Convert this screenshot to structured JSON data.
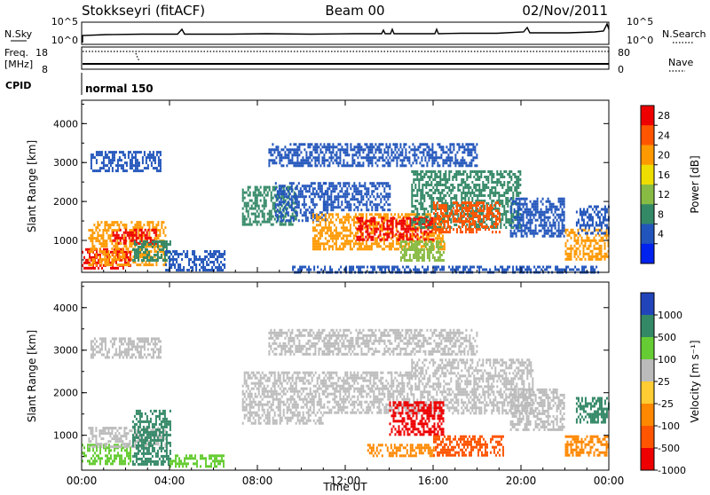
{
  "header": {
    "station": "Stokkseyri (fitACF)",
    "beam": "Beam 00",
    "date": "02/Nov/2011"
  },
  "strips": {
    "nsky": {
      "label": "N.Sky",
      "ticks": [
        "10^5",
        "10^0"
      ]
    },
    "nsearch": {
      "label": "N.Search",
      "ticks": [
        "10^5",
        "10^0"
      ]
    },
    "freq": {
      "label_line1": "Freq.",
      "label_line2": "[MHz]",
      "ticks": [
        "18",
        "8"
      ]
    },
    "nave": {
      "label": "Nave",
      "ticks": [
        "80",
        "0"
      ]
    },
    "cpid": {
      "label": "CPID",
      "value": "normal 150"
    }
  },
  "chart_data": [
    {
      "type": "heatmap",
      "name": "power",
      "ylabel": "Slant Range [km]",
      "y_ticks": [
        "4000",
        "3000",
        "2000",
        "1000"
      ],
      "y_tick_values": [
        4000,
        3000,
        2000,
        1000
      ],
      "ylim": [
        180,
        4600
      ],
      "x_ticks": [
        "00:00",
        "04:00",
        "08:00",
        "12:00",
        "16:00",
        "20:00",
        "00:00"
      ],
      "x_tick_hours": [
        0,
        4,
        8,
        12,
        16,
        20,
        24
      ],
      "xlim_hours": [
        0,
        24
      ],
      "colorbar": {
        "label": "Power [dB]",
        "tick_labels": [
          "28",
          "24",
          "20",
          "16",
          "12",
          "8",
          "4"
        ],
        "colors": [
          "#ee0000",
          "#ff5500",
          "#ff9900",
          "#eedd00",
          "#88bb44",
          "#338866",
          "#2255bb",
          "#0022ee"
        ]
      },
      "regions": [
        {
          "t": [
            0.0,
            2.2
          ],
          "r": [
            300,
            800
          ],
          "color": "#ee0000"
        },
        {
          "t": [
            0.3,
            3.8
          ],
          "r": [
            400,
            1500
          ],
          "color": "#ff9900"
        },
        {
          "t": [
            1.4,
            3.4
          ],
          "r": [
            900,
            1300
          ],
          "color": "#ee0000"
        },
        {
          "t": [
            2.3,
            4.0
          ],
          "r": [
            500,
            1000
          ],
          "color": "#338866"
        },
        {
          "t": [
            3.8,
            6.5
          ],
          "r": [
            250,
            750
          ],
          "color": "#2255bb"
        },
        {
          "t": [
            0.4,
            3.6
          ],
          "r": [
            2800,
            3300
          ],
          "color": "#2255bb"
        },
        {
          "t": [
            7.3,
            9.8
          ],
          "r": [
            1400,
            2400
          ],
          "color": "#338866"
        },
        {
          "t": [
            8.8,
            11.2
          ],
          "r": [
            1500,
            2500
          ],
          "color": "#2255bb"
        },
        {
          "t": [
            10.5,
            16.5
          ],
          "r": [
            800,
            1700
          ],
          "color": "#ff9900"
        },
        {
          "t": [
            12.5,
            16.0
          ],
          "r": [
            1000,
            1600
          ],
          "color": "#ee0000"
        },
        {
          "t": [
            11.0,
            14.0
          ],
          "r": [
            1800,
            2500
          ],
          "color": "#2255bb"
        },
        {
          "t": [
            15.0,
            20.0
          ],
          "r": [
            1300,
            2800
          ],
          "color": "#338866"
        },
        {
          "t": [
            16.0,
            19.0
          ],
          "r": [
            1200,
            2000
          ],
          "color": "#ff5500"
        },
        {
          "t": [
            14.5,
            16.5
          ],
          "r": [
            500,
            1000
          ],
          "color": "#88bb44"
        },
        {
          "t": [
            19.5,
            22.0
          ],
          "r": [
            1100,
            2100
          ],
          "color": "#2255bb"
        },
        {
          "t": [
            22.0,
            24.0
          ],
          "r": [
            500,
            1300
          ],
          "color": "#ff9900"
        },
        {
          "t": [
            22.5,
            24.0
          ],
          "r": [
            1200,
            1900
          ],
          "color": "#2255bb"
        },
        {
          "t": [
            9.5,
            23.5
          ],
          "r": [
            200,
            350
          ],
          "color": "#2255bb"
        },
        {
          "t": [
            8.5,
            18.0
          ],
          "r": [
            2900,
            3500
          ],
          "color": "#2255bb"
        }
      ]
    },
    {
      "type": "heatmap",
      "name": "velocity",
      "ylabel": "Slant Range [km]",
      "y_ticks": [
        "4000",
        "3000",
        "2000",
        "1000"
      ],
      "y_tick_values": [
        4000,
        3000,
        2000,
        1000
      ],
      "ylim": [
        180,
        4600
      ],
      "x_ticks": [
        "00:00",
        "04:00",
        "08:00",
        "12:00",
        "16:00",
        "20:00",
        "00:00"
      ],
      "x_tick_hours": [
        0,
        4,
        8,
        12,
        16,
        20,
        24
      ],
      "xlim_hours": [
        0,
        24
      ],
      "xlabel": "Time UT",
      "colorbar": {
        "label": "Velocity [m s⁻¹]",
        "tick_labels": [
          "1000",
          "500",
          "100",
          "25",
          "-25",
          "-100",
          "-500",
          "-1000"
        ],
        "colors": [
          "#2244bb",
          "#338866",
          "#66cc33",
          "#bbbbbb",
          "#ffcc33",
          "#ff8800",
          "#ff5500",
          "#ee0000"
        ]
      },
      "regions": [
        {
          "t": [
            0.0,
            2.2
          ],
          "r": [
            300,
            800
          ],
          "color": "#66cc33"
        },
        {
          "t": [
            0.3,
            3.8
          ],
          "r": [
            700,
            1200
          ],
          "color": "#bbbbbb"
        },
        {
          "t": [
            2.3,
            4.0
          ],
          "r": [
            300,
            1600
          ],
          "color": "#338866"
        },
        {
          "t": [
            4.0,
            6.5
          ],
          "r": [
            250,
            550
          ],
          "color": "#66cc33"
        },
        {
          "t": [
            0.4,
            3.6
          ],
          "r": [
            2800,
            3300
          ],
          "color": "#bbbbbb"
        },
        {
          "t": [
            7.3,
            11.0
          ],
          "r": [
            1300,
            2500
          ],
          "color": "#bbbbbb"
        },
        {
          "t": [
            11.0,
            15.0
          ],
          "r": [
            1500,
            2500
          ],
          "color": "#bbbbbb"
        },
        {
          "t": [
            15.0,
            20.5
          ],
          "r": [
            1500,
            2800
          ],
          "color": "#bbbbbb"
        },
        {
          "t": [
            14.0,
            16.5
          ],
          "r": [
            1000,
            1800
          ],
          "color": "#ee0000"
        },
        {
          "t": [
            13.0,
            16.0
          ],
          "r": [
            500,
            800
          ],
          "color": "#ff8800"
        },
        {
          "t": [
            16.0,
            19.2
          ],
          "r": [
            500,
            1000
          ],
          "color": "#ff5500"
        },
        {
          "t": [
            19.5,
            22.0
          ],
          "r": [
            1100,
            2100
          ],
          "color": "#bbbbbb"
        },
        {
          "t": [
            22.0,
            24.0
          ],
          "r": [
            500,
            1000
          ],
          "color": "#ff8800"
        },
        {
          "t": [
            22.5,
            24.0
          ],
          "r": [
            1300,
            1900
          ],
          "color": "#338866"
        },
        {
          "t": [
            8.5,
            18.0
          ],
          "r": [
            2900,
            3500
          ],
          "color": "#bbbbbb"
        }
      ]
    }
  ]
}
